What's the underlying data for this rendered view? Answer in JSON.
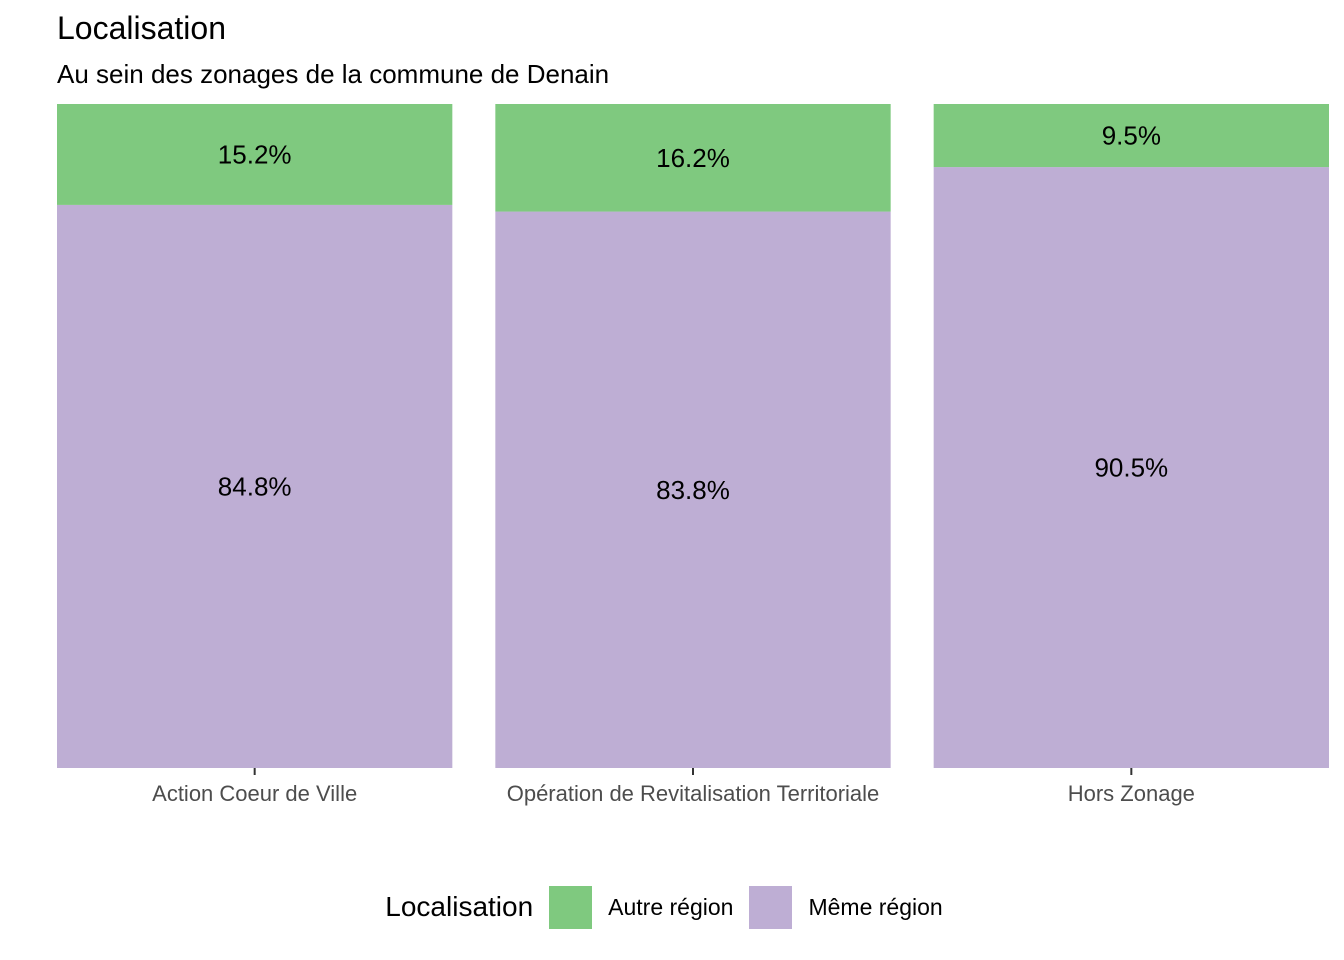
{
  "chart_data": {
    "type": "bar",
    "stacked": true,
    "title": "Localisation",
    "subtitle": "Au sein des zonages de la commune de Denain",
    "categories": [
      "Action Coeur de Ville",
      "Opération de Revitalisation Territoriale",
      "Hors Zonage"
    ],
    "series": [
      {
        "name": "Même région",
        "color": "#beaed4",
        "values": [
          84.8,
          83.8,
          90.5
        ],
        "labels": [
          "84.8%",
          "83.8%",
          "90.5%"
        ]
      },
      {
        "name": "Autre région",
        "color": "#7fc97f",
        "values": [
          15.2,
          16.2,
          9.5
        ],
        "labels": [
          "15.2%",
          "16.2%",
          "9.5%"
        ]
      }
    ],
    "ylim": [
      0,
      100
    ],
    "xlabel": "",
    "ylabel": "",
    "grid": false,
    "legend": {
      "title": "Localisation",
      "placement": "bottom",
      "entries": [
        {
          "label": "Autre région",
          "color": "#7fc97f"
        },
        {
          "label": "Même région",
          "color": "#beaed4"
        }
      ]
    }
  }
}
